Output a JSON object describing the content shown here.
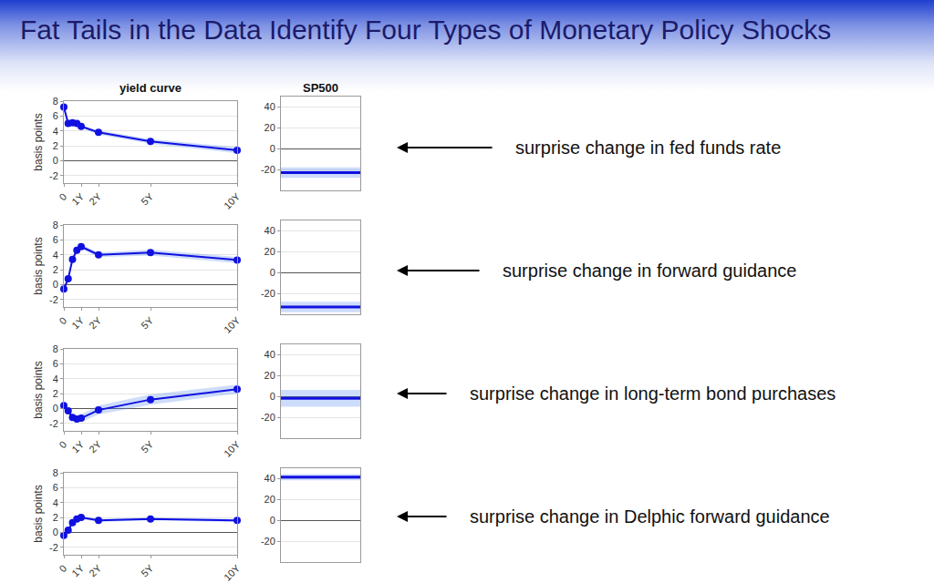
{
  "title": "Fat Tails in the Data Identify Four Types of Monetary Policy Shocks",
  "annotations": [
    "surprise change in fed funds rate",
    "surprise change in forward guidance",
    "surprise change in long-term bond purchases",
    "surprise change in Delphic forward guidance"
  ],
  "chart_data": [
    {
      "type": "line",
      "title": "yield curve",
      "ylabel": "basis points",
      "x": [
        0,
        0.25,
        0.5,
        0.75,
        1,
        2,
        5,
        10
      ],
      "values": [
        7.2,
        5.0,
        5.1,
        5.0,
        4.6,
        3.8,
        2.6,
        1.4
      ],
      "lower": [
        7.0,
        4.8,
        4.9,
        4.8,
        4.4,
        3.5,
        2.3,
        1.0
      ],
      "upper": [
        7.4,
        5.2,
        5.3,
        5.2,
        4.8,
        4.1,
        2.9,
        1.8
      ],
      "color": "#1010e0",
      "marker": "circle",
      "xlim": [
        0,
        10
      ],
      "xticks": [
        0,
        {
          "value": 1,
          "label": "1Y"
        },
        {
          "value": 2,
          "label": "2Y"
        },
        {
          "value": 5,
          "label": "5Y"
        },
        {
          "value": 10,
          "label": "10Y"
        }
      ],
      "ylim": [
        -3,
        8
      ],
      "yticks": [
        -2,
        0,
        2,
        4,
        6,
        8
      ],
      "grid": true
    },
    {
      "type": "hline",
      "title": "SP500",
      "values": [
        -23
      ],
      "lower": [
        -28
      ],
      "upper": [
        -18
      ],
      "color": "#1010e0",
      "ylim": [
        -40,
        50
      ],
      "yticks": [
        -20,
        0,
        20,
        40
      ],
      "grid": true,
      "tick_labels": "y"
    },
    {
      "type": "line",
      "ylabel": "basis points",
      "x": [
        0,
        0.25,
        0.5,
        0.75,
        1,
        2,
        5,
        10
      ],
      "values": [
        -0.6,
        0.8,
        3.4,
        4.6,
        5.1,
        4.0,
        4.3,
        3.3
      ],
      "lower": [
        -0.8,
        0.6,
        3.2,
        4.3,
        4.8,
        3.7,
        3.9,
        2.9
      ],
      "upper": [
        -0.4,
        1.0,
        3.6,
        4.9,
        5.4,
        4.3,
        4.7,
        3.7
      ],
      "color": "#1010e0",
      "marker": "circle",
      "xlim": [
        0,
        10
      ],
      "xticks": [
        0,
        {
          "value": 1,
          "label": "1Y"
        },
        {
          "value": 2,
          "label": "2Y"
        },
        {
          "value": 5,
          "label": "5Y"
        },
        {
          "value": 10,
          "label": "10Y"
        }
      ],
      "ylim": [
        -3,
        8
      ],
      "yticks": [
        -2,
        0,
        2,
        4,
        6,
        8
      ],
      "grid": true
    },
    {
      "type": "hline",
      "values": [
        -33
      ],
      "lower": [
        -38
      ],
      "upper": [
        -28
      ],
      "color": "#1010e0",
      "ylim": [
        -40,
        50
      ],
      "yticks": [
        -20,
        0,
        20,
        40
      ],
      "grid": true,
      "tick_labels": "y"
    },
    {
      "type": "line",
      "ylabel": "basis points",
      "x": [
        0,
        0.25,
        0.5,
        0.75,
        1,
        2,
        5,
        10
      ],
      "values": [
        0.4,
        -0.3,
        -1.2,
        -1.4,
        -1.3,
        -0.2,
        1.2,
        2.6
      ],
      "lower": [
        0.2,
        -0.5,
        -1.5,
        -1.8,
        -1.8,
        -0.8,
        0.5,
        2.0
      ],
      "upper": [
        0.6,
        -0.1,
        -0.9,
        -1.0,
        -0.8,
        0.4,
        1.9,
        3.2
      ],
      "color": "#1010e0",
      "marker": "circle",
      "xlim": [
        0,
        10
      ],
      "xticks": [
        0,
        {
          "value": 1,
          "label": "1Y"
        },
        {
          "value": 2,
          "label": "2Y"
        },
        {
          "value": 5,
          "label": "5Y"
        },
        {
          "value": 10,
          "label": "10Y"
        }
      ],
      "ylim": [
        -3,
        8
      ],
      "yticks": [
        -2,
        0,
        2,
        4,
        6,
        8
      ],
      "grid": true
    },
    {
      "type": "hline",
      "values": [
        -2
      ],
      "lower": [
        -10
      ],
      "upper": [
        6
      ],
      "color": "#1010e0",
      "ylim": [
        -40,
        50
      ],
      "yticks": [
        -20,
        0,
        20,
        40
      ],
      "grid": true,
      "tick_labels": "y"
    },
    {
      "type": "line",
      "ylabel": "basis points",
      "x": [
        0,
        0.25,
        0.5,
        0.75,
        1,
        2,
        5,
        10
      ],
      "values": [
        -0.4,
        0.3,
        1.3,
        1.8,
        2.0,
        1.6,
        1.8,
        1.6
      ],
      "lower": [
        -0.6,
        0.1,
        1.1,
        1.6,
        1.8,
        1.4,
        1.6,
        1.4
      ],
      "upper": [
        -0.2,
        0.5,
        1.5,
        2.0,
        2.2,
        1.8,
        2.0,
        1.8
      ],
      "color": "#1010e0",
      "marker": "circle",
      "xlim": [
        0,
        10
      ],
      "xticks": [
        0,
        {
          "value": 1,
          "label": "1Y"
        },
        {
          "value": 2,
          "label": "2Y"
        },
        {
          "value": 5,
          "label": "5Y"
        },
        {
          "value": 10,
          "label": "10Y"
        }
      ],
      "ylim": [
        -3,
        8
      ],
      "yticks": [
        -2,
        0,
        2,
        4,
        6,
        8
      ],
      "grid": true
    },
    {
      "type": "hline",
      "values": [
        41
      ],
      "lower": [
        38
      ],
      "upper": [
        44
      ],
      "color": "#1010e0",
      "ylim": [
        -40,
        50
      ],
      "yticks": [
        -20,
        0,
        20,
        40
      ],
      "grid": true,
      "tick_labels": "y"
    }
  ]
}
